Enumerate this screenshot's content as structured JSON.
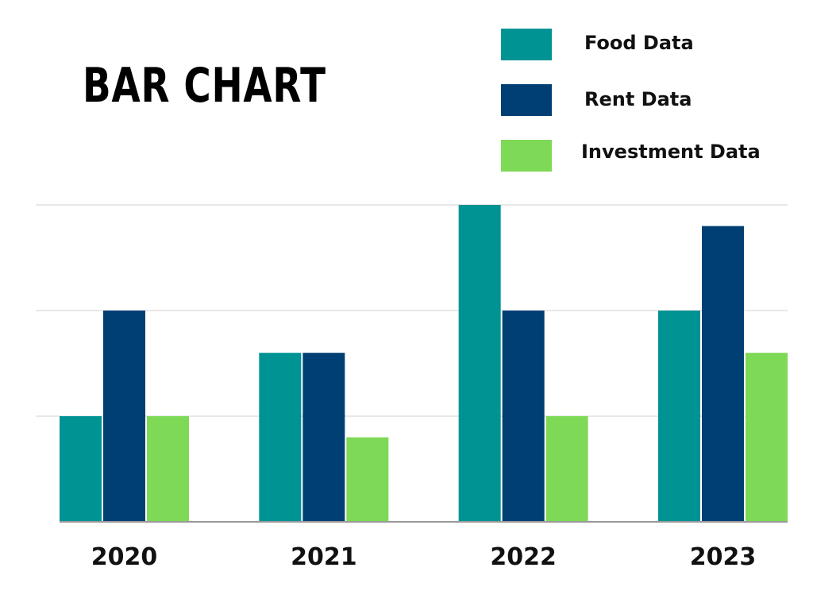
{
  "chart_data": {
    "type": "bar",
    "title": "BAR CHART",
    "categories": [
      "2020",
      "2021",
      "2022",
      "2023"
    ],
    "series": [
      {
        "name": "Food Data",
        "color": "#009394",
        "values": [
          1,
          1.6,
          3,
          2
        ]
      },
      {
        "name": "Rent Data",
        "color": "#003f74",
        "values": [
          2,
          1.6,
          2,
          2.8
        ]
      },
      {
        "name": "Investment Data",
        "color": "#7ed957",
        "values": [
          1,
          0.8,
          1,
          1.6
        ]
      }
    ],
    "ylim": [
      0,
      3
    ],
    "grid": true,
    "legend": "top-right",
    "xlabel": "",
    "ylabel": ""
  }
}
